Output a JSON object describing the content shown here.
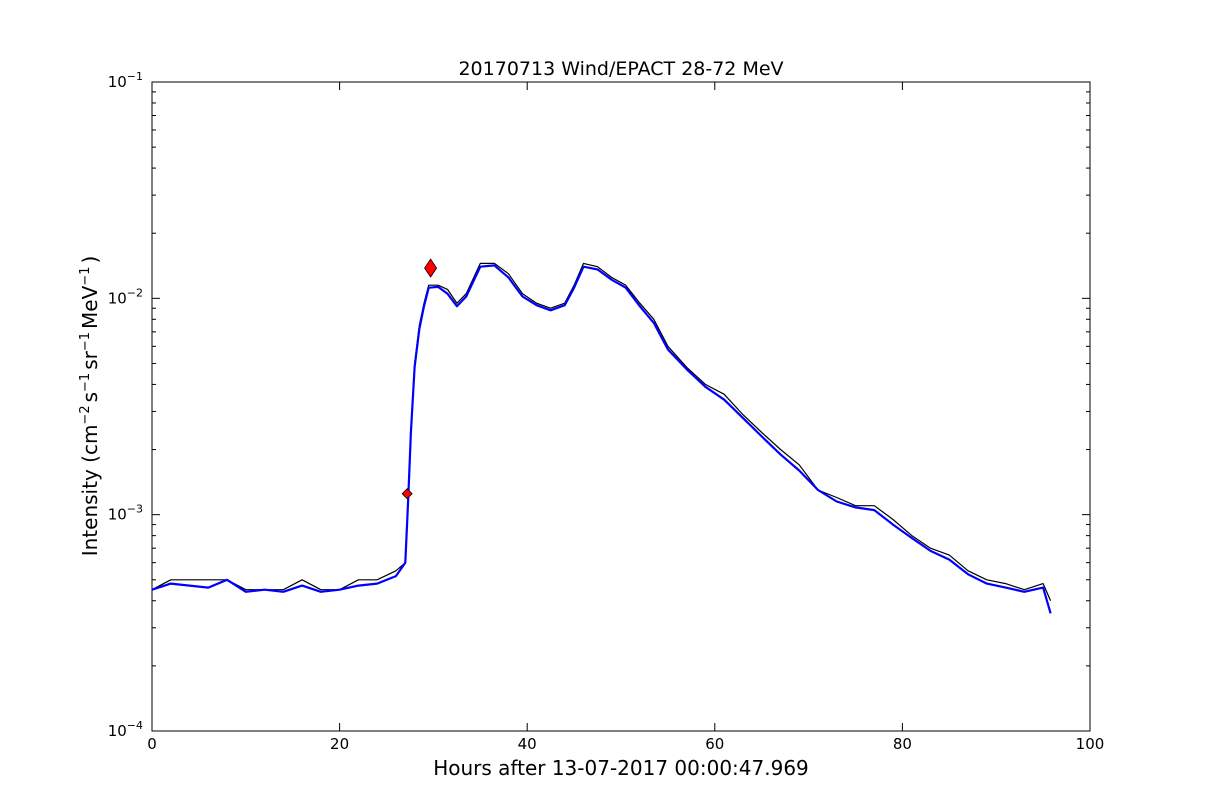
{
  "chart_data": {
    "type": "line",
    "title": "20170713 Wind/EPACT 28-72 MeV",
    "xlabel": "Hours after 13-07-2017 00:00:47.969",
    "ylabel_parts": {
      "prefix": "Intensity (cm",
      "exp1": "−2",
      "part2": "s",
      "exp2": "−1",
      "part3": "sr",
      "exp3": "−1",
      "part4": "MeV",
      "exp4": "−1",
      "suffix": ")"
    },
    "xlim": [
      0,
      100
    ],
    "ylim": [
      0.0001,
      0.1
    ],
    "yscale": "log",
    "grid": false,
    "x_ticks": [
      0,
      20,
      40,
      60,
      80,
      100
    ],
    "y_ticks": [
      {
        "value": 0.0001,
        "base": "10",
        "exp": "−4"
      },
      {
        "value": 0.001,
        "base": "10",
        "exp": "−3"
      },
      {
        "value": 0.01,
        "base": "10",
        "exp": "−2"
      },
      {
        "value": 0.1,
        "base": "10",
        "exp": "−1"
      }
    ],
    "series": [
      {
        "color": "#000000",
        "style": "raw",
        "points": [
          [
            0.0,
            0.00045
          ],
          [
            2.0,
            0.0005
          ],
          [
            4.0,
            0.0005
          ],
          [
            6.0,
            0.0005
          ],
          [
            8.0,
            0.0005
          ],
          [
            10.0,
            0.00045
          ],
          [
            12.0,
            0.00045
          ],
          [
            14.0,
            0.00045
          ],
          [
            16.0,
            0.0005
          ],
          [
            18.0,
            0.00045
          ],
          [
            20.0,
            0.00045
          ],
          [
            22.0,
            0.0005
          ],
          [
            24.0,
            0.0005
          ],
          [
            26.0,
            0.00055
          ],
          [
            27.0,
            0.0006
          ],
          [
            27.3,
            0.0012
          ],
          [
            27.6,
            0.0025
          ],
          [
            28.0,
            0.005
          ],
          [
            28.5,
            0.0075
          ],
          [
            29.0,
            0.0095
          ],
          [
            29.5,
            0.0115
          ],
          [
            30.5,
            0.0115
          ],
          [
            31.5,
            0.011
          ],
          [
            32.5,
            0.0095
          ],
          [
            33.5,
            0.0105
          ],
          [
            35.0,
            0.0145
          ],
          [
            36.5,
            0.0145
          ],
          [
            38.0,
            0.013
          ],
          [
            39.5,
            0.0105
          ],
          [
            41.0,
            0.0095
          ],
          [
            42.5,
            0.009
          ],
          [
            44.0,
            0.0095
          ],
          [
            45.0,
            0.0115
          ],
          [
            46.0,
            0.0145
          ],
          [
            47.5,
            0.014
          ],
          [
            49.0,
            0.0125
          ],
          [
            50.5,
            0.0115
          ],
          [
            52.0,
            0.0095
          ],
          [
            53.5,
            0.008
          ],
          [
            55.0,
            0.006
          ],
          [
            57.0,
            0.0048
          ],
          [
            59.0,
            0.004
          ],
          [
            61.0,
            0.0036
          ],
          [
            63.0,
            0.0029
          ],
          [
            65.0,
            0.0024
          ],
          [
            67.0,
            0.002
          ],
          [
            69.0,
            0.0017
          ],
          [
            71.0,
            0.0013
          ],
          [
            73.0,
            0.0012
          ],
          [
            75.0,
            0.0011
          ],
          [
            77.0,
            0.0011
          ],
          [
            79.0,
            0.00095
          ],
          [
            81.0,
            0.0008
          ],
          [
            83.0,
            0.0007
          ],
          [
            85.0,
            0.00065
          ],
          [
            87.0,
            0.00055
          ],
          [
            89.0,
            0.0005
          ],
          [
            91.0,
            0.00048
          ],
          [
            93.0,
            0.00045
          ],
          [
            95.0,
            0.00048
          ],
          [
            95.8,
            0.0004
          ]
        ]
      },
      {
        "color": "#0000ff",
        "style": "smoothed",
        "points": [
          [
            0.0,
            0.00045
          ],
          [
            2.0,
            0.00048
          ],
          [
            4.0,
            0.00047
          ],
          [
            6.0,
            0.00046
          ],
          [
            8.0,
            0.0005
          ],
          [
            10.0,
            0.00044
          ],
          [
            12.0,
            0.00045
          ],
          [
            14.0,
            0.00044
          ],
          [
            16.0,
            0.00047
          ],
          [
            18.0,
            0.00044
          ],
          [
            20.0,
            0.00045
          ],
          [
            22.0,
            0.00047
          ],
          [
            24.0,
            0.00048
          ],
          [
            26.0,
            0.00052
          ],
          [
            27.0,
            0.0006
          ],
          [
            27.3,
            0.00115
          ],
          [
            27.6,
            0.0024
          ],
          [
            28.0,
            0.0048
          ],
          [
            28.5,
            0.0072
          ],
          [
            29.0,
            0.0092
          ],
          [
            29.5,
            0.0112
          ],
          [
            30.5,
            0.0113
          ],
          [
            31.5,
            0.0105
          ],
          [
            32.5,
            0.0092
          ],
          [
            33.5,
            0.0102
          ],
          [
            35.0,
            0.014
          ],
          [
            36.5,
            0.0142
          ],
          [
            38.0,
            0.0125
          ],
          [
            39.5,
            0.0102
          ],
          [
            41.0,
            0.0093
          ],
          [
            42.5,
            0.0088
          ],
          [
            44.0,
            0.0093
          ],
          [
            45.0,
            0.0112
          ],
          [
            46.0,
            0.014
          ],
          [
            47.5,
            0.0136
          ],
          [
            49.0,
            0.0122
          ],
          [
            50.5,
            0.0112
          ],
          [
            52.0,
            0.0092
          ],
          [
            53.5,
            0.0077
          ],
          [
            55.0,
            0.0058
          ],
          [
            57.0,
            0.0047
          ],
          [
            59.0,
            0.0039
          ],
          [
            61.0,
            0.0034
          ],
          [
            63.0,
            0.0028
          ],
          [
            65.0,
            0.0023
          ],
          [
            67.0,
            0.0019
          ],
          [
            69.0,
            0.0016
          ],
          [
            71.0,
            0.0013
          ],
          [
            73.0,
            0.00115
          ],
          [
            75.0,
            0.00108
          ],
          [
            77.0,
            0.00105
          ],
          [
            79.0,
            0.0009
          ],
          [
            81.0,
            0.00078
          ],
          [
            83.0,
            0.00068
          ],
          [
            85.0,
            0.00062
          ],
          [
            87.0,
            0.00053
          ],
          [
            89.0,
            0.00048
          ],
          [
            91.0,
            0.00046
          ],
          [
            93.0,
            0.00044
          ],
          [
            95.0,
            0.00046
          ],
          [
            95.8,
            0.00035
          ]
        ]
      }
    ],
    "markers": [
      {
        "x": 27.2,
        "y": 0.00125,
        "color": "#ff0000",
        "shape": "diamond",
        "size": "small"
      },
      {
        "x": 29.7,
        "y": 0.0138,
        "color": "#ff0000",
        "shape": "diamond",
        "size": "large"
      }
    ]
  }
}
